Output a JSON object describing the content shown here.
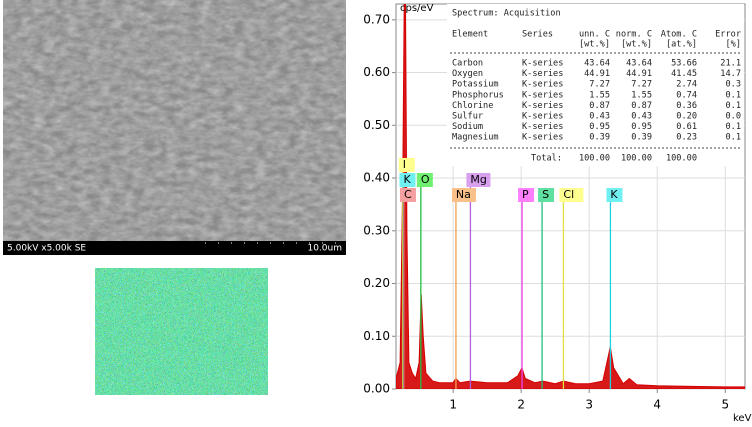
{
  "sem_image": {
    "caption": "5.00kV x5.00k SE",
    "scale": "10.0um"
  },
  "chart_data": {
    "type": "area",
    "y_label": "cps/eV",
    "x_label": "keV",
    "xlim": [
      0.16,
      5.29
    ],
    "ylim": [
      0,
      0.73
    ],
    "xticks": [
      1,
      2,
      3,
      4,
      5
    ],
    "yticks": [
      {
        "value": 0,
        "label": "0.00"
      },
      {
        "value": 0.1,
        "label": "0.10"
      },
      {
        "value": 0.2,
        "label": "0.20"
      },
      {
        "value": 0.3,
        "label": "0.30"
      },
      {
        "value": 0.4,
        "label": "0.40"
      },
      {
        "value": 0.5,
        "label": "0.50"
      },
      {
        "value": 0.6,
        "label": "0.60"
      },
      {
        "value": 0.7,
        "label": "0.70"
      }
    ],
    "grid": true,
    "x": [
      0.16,
      0.22,
      0.26,
      0.28,
      0.3,
      0.32,
      0.35,
      0.4,
      0.45,
      0.5,
      0.53,
      0.56,
      0.6,
      0.7,
      0.8,
      1.0,
      1.04,
      1.1,
      1.25,
      1.5,
      1.8,
      1.95,
      2.01,
      2.06,
      2.2,
      2.32,
      2.5,
      2.62,
      2.8,
      3.0,
      3.2,
      3.31,
      3.36,
      3.5,
      3.59,
      3.7,
      4.0,
      4.5,
      5.0,
      5.29
    ],
    "series": [
      {
        "name": "Spectrum",
        "color": "#d40000",
        "values": [
          0.02,
          0.05,
          0.4,
          0.73,
          0.73,
          0.3,
          0.05,
          0.03,
          0.02,
          0.05,
          0.18,
          0.1,
          0.03,
          0.015,
          0.012,
          0.012,
          0.02,
          0.012,
          0.015,
          0.012,
          0.012,
          0.025,
          0.04,
          0.02,
          0.012,
          0.015,
          0.01,
          0.015,
          0.01,
          0.01,
          0.015,
          0.08,
          0.04,
          0.01,
          0.02,
          0.008,
          0.006,
          0.005,
          0.004,
          0.004
        ]
      }
    ],
    "element_lines": [
      {
        "label": "I",
        "energy": 0.26,
        "color": "#e8e020",
        "bg": "#ffff90"
      },
      {
        "label": "K",
        "energy": 0.27,
        "color": "#20d0e0",
        "bg": "#70f0f0"
      },
      {
        "label": "C",
        "energy": 0.277,
        "color": "#e06060",
        "bg": "#f4a0a0"
      },
      {
        "label": "O",
        "energy": 0.525,
        "color": "#20c040",
        "bg": "#70f070"
      },
      {
        "label": "Na",
        "energy": 1.041,
        "color": "#f0a050",
        "bg": "#f9c08a"
      },
      {
        "label": "Mg",
        "energy": 1.254,
        "color": "#b060e0",
        "bg": "#d9a0f0"
      },
      {
        "label": "P",
        "energy": 2.013,
        "color": "#f040f0",
        "bg": "#ff80ff"
      },
      {
        "label": "S",
        "energy": 2.307,
        "color": "#20c080",
        "bg": "#60e0a0"
      },
      {
        "label": "Cl",
        "energy": 2.621,
        "color": "#e0e040",
        "bg": "#ffff90"
      },
      {
        "label": "K",
        "energy": 3.312,
        "color": "#20d0e0",
        "bg": "#70f0f0"
      }
    ]
  },
  "spectrum_table": {
    "title": "Spectrum: Acquisition",
    "header": [
      "Element",
      "Series",
      "unn. C",
      "norm. C",
      "Atom. C",
      "Error"
    ],
    "units": [
      "[wt.%]",
      "[wt.%]",
      "[at.%]",
      "[%]"
    ],
    "rows": [
      [
        "Carbon",
        "K-series",
        "43.64",
        "43.64",
        "53.66",
        "21.1"
      ],
      [
        "Oxygen",
        "K-series",
        "44.91",
        "44.91",
        "41.45",
        "14.7"
      ],
      [
        "Potassium",
        "K-series",
        "7.27",
        "7.27",
        "2.74",
        "0.3"
      ],
      [
        "Phosphorus",
        "K-series",
        "1.55",
        "1.55",
        "0.74",
        "0.1"
      ],
      [
        "Chlorine",
        "K-series",
        "0.87",
        "0.87",
        "0.36",
        "0.1"
      ],
      [
        "Sulfur",
        "K-series",
        "0.43",
        "0.43",
        "0.20",
        "0.0"
      ],
      [
        "Sodium",
        "K-series",
        "0.95",
        "0.95",
        "0.61",
        "0.1"
      ],
      [
        "Magnesium",
        "K-series",
        "0.39",
        "0.39",
        "0.23",
        "0.1"
      ]
    ],
    "total": [
      "Total:",
      "100.00",
      "100.00",
      "100.00"
    ]
  }
}
